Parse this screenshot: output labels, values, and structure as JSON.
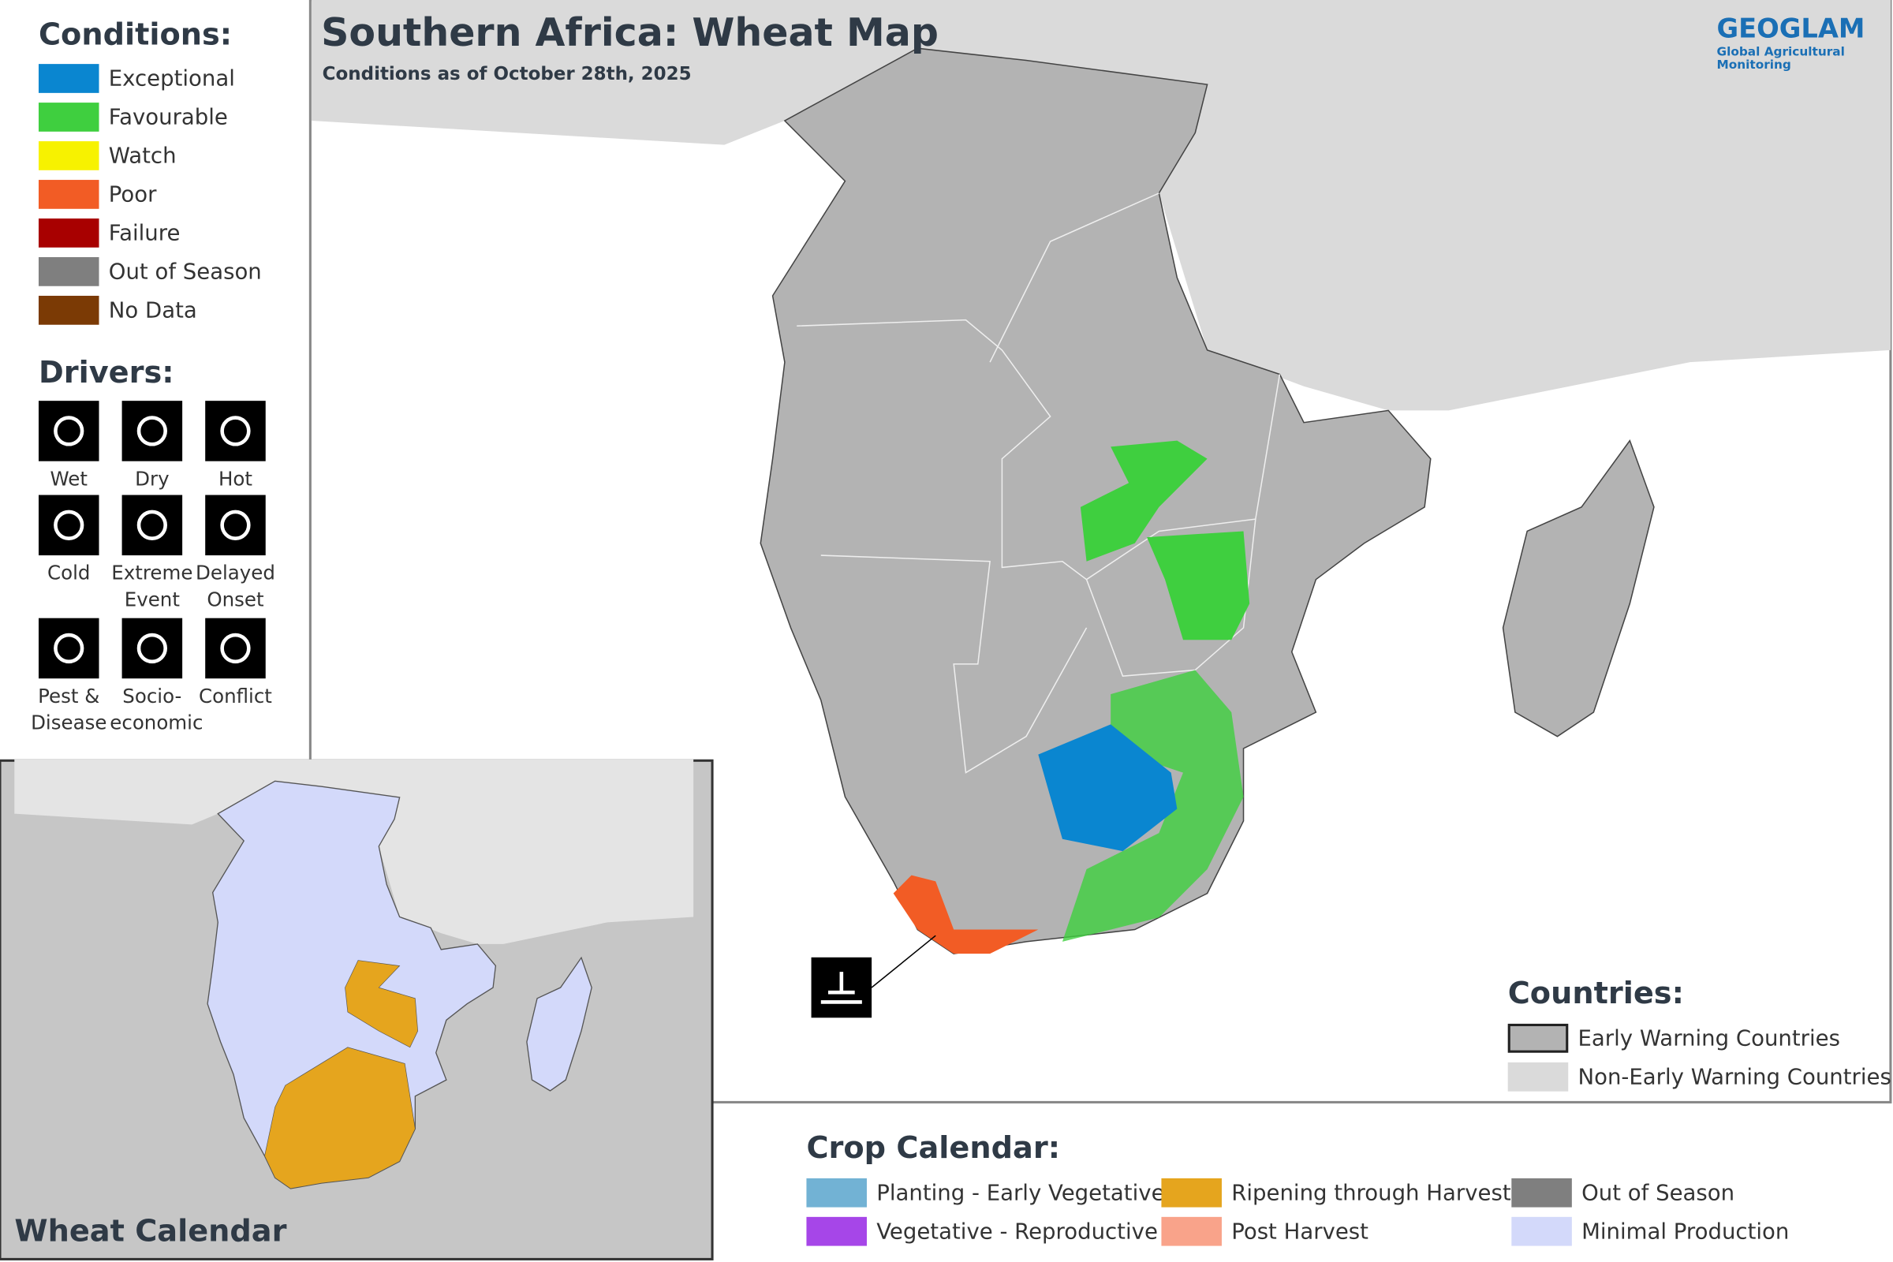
{
  "header": {
    "title": "Southern Africa: Wheat Map",
    "subtitle": "Conditions as of October 28th, 2025"
  },
  "logo": {
    "name": "GEOGLAM",
    "tagline": "Global Agricultural Monitoring"
  },
  "conditions": {
    "title": "Conditions:",
    "items": [
      {
        "label": "Exceptional",
        "color": "#0a86d0"
      },
      {
        "label": "Favourable",
        "color": "#3fcf3f"
      },
      {
        "label": "Watch",
        "color": "#f7f200"
      },
      {
        "label": "Poor",
        "color": "#f25c25"
      },
      {
        "label": "Failure",
        "color": "#a80000"
      },
      {
        "label": "Out of Season",
        "color": "#7f7f7f"
      },
      {
        "label": "No Data",
        "color": "#7b3a05"
      }
    ]
  },
  "drivers": {
    "title": "Drivers:",
    "items": [
      "Wet",
      "Dry",
      "Hot",
      "Cold",
      "Extreme Event",
      "Delayed Onset",
      "Pest & Disease",
      "Socio-economic",
      "Conflict"
    ]
  },
  "countries": {
    "title": "Countries:",
    "items": [
      {
        "label": "Early Warning Countries",
        "color": "#b3b3b3"
      },
      {
        "label": "Non-Early Warning Countries",
        "color": "#dadada"
      }
    ]
  },
  "crop_calendar": {
    "title": "Crop Calendar:",
    "items": [
      {
        "label": "Planting - Early Vegetative",
        "color": "#72b2d4"
      },
      {
        "label": "Ripening through Harvest",
        "color": "#e5a51e"
      },
      {
        "label": "Out of Season",
        "color": "#7f7f7f"
      },
      {
        "label": "Vegetative - Reproductive",
        "color": "#a646e8"
      },
      {
        "label": "Post Harvest",
        "color": "#f9a38a"
      },
      {
        "label": "Minimal Production",
        "color": "#d3d9fa"
      }
    ]
  },
  "inset": {
    "title": "Wheat Calendar"
  }
}
